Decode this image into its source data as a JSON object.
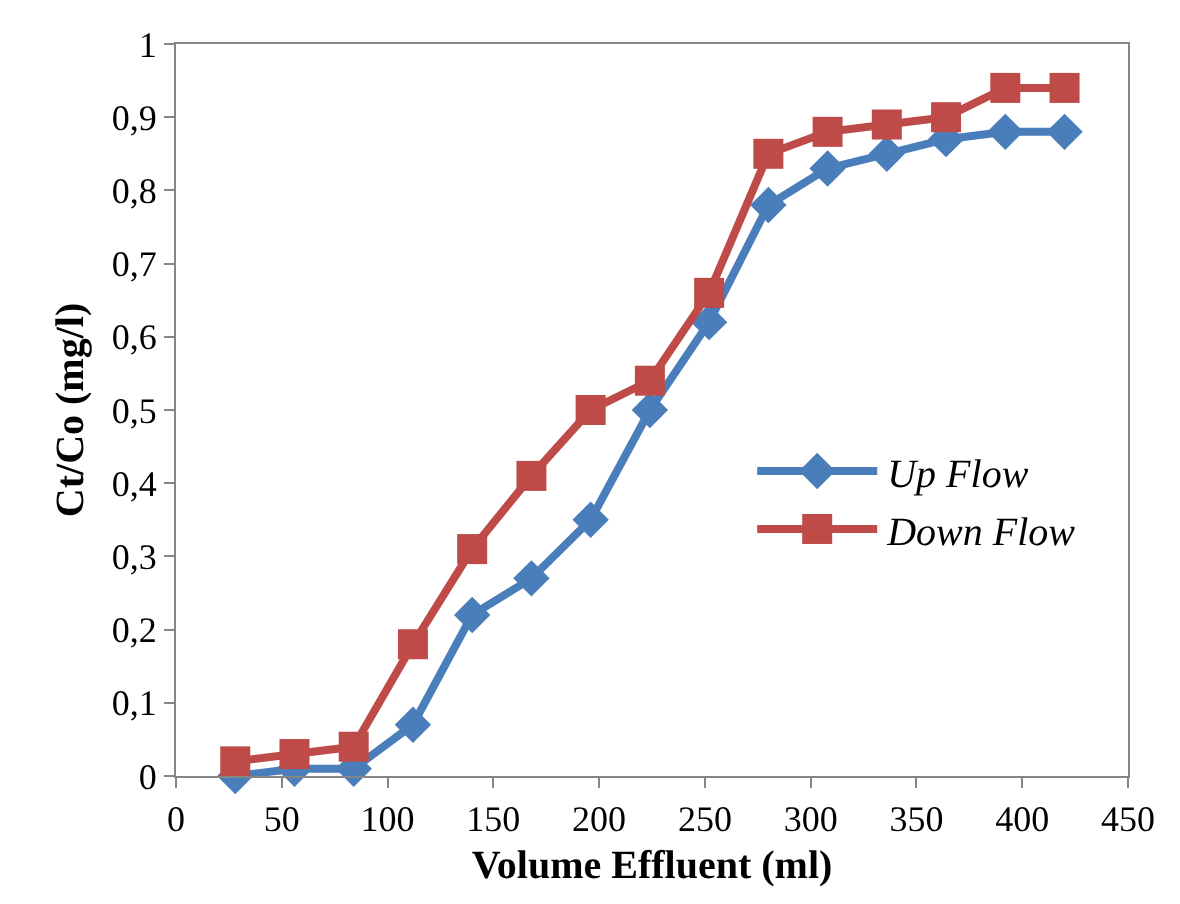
{
  "chart_data": {
    "type": "line",
    "xlabel": "Volume Effluent (ml)",
    "ylabel": "Ct/Co (mg/l)",
    "x": [
      28,
      56,
      84,
      112,
      140,
      168,
      196,
      224,
      252,
      280,
      308,
      336,
      364,
      392,
      420
    ],
    "series": [
      {
        "name": "Up Flow",
        "color": "#4a7ebb",
        "marker": "diamond",
        "values": [
          0.0,
          0.01,
          0.01,
          0.07,
          0.22,
          0.27,
          0.35,
          0.5,
          0.62,
          0.78,
          0.83,
          0.85,
          0.87,
          0.88,
          0.88
        ]
      },
      {
        "name": "Down Flow",
        "color": "#be4b48",
        "marker": "square",
        "values": [
          0.02,
          0.03,
          0.04,
          0.18,
          0.31,
          0.41,
          0.5,
          0.54,
          0.66,
          0.85,
          0.88,
          0.89,
          0.9,
          0.94,
          0.94
        ]
      }
    ],
    "xlim": [
      0,
      450
    ],
    "xticks": [
      0,
      50,
      100,
      150,
      200,
      250,
      300,
      350,
      400,
      450
    ],
    "ylim": [
      0,
      1
    ],
    "yticks": [
      0,
      {
        "value": 0.1,
        "label": "0,1"
      },
      {
        "value": 0.2,
        "label": "0,2"
      },
      {
        "value": 0.3,
        "label": "0,3"
      },
      {
        "value": 0.4,
        "label": "0,4"
      },
      {
        "value": 0.5,
        "label": "0,5"
      },
      {
        "value": 0.6,
        "label": "0,6"
      },
      {
        "value": 0.7,
        "label": "0,7"
      },
      {
        "value": 0.8,
        "label": "0,8"
      },
      {
        "value": 0.9,
        "label": "0,9"
      },
      1
    ],
    "legend": "right",
    "line_style": "solid"
  }
}
